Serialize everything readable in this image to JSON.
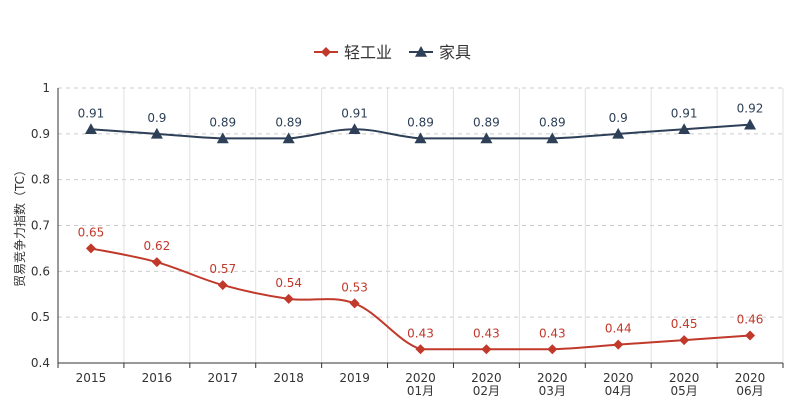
{
  "chart_data": {
    "type": "line",
    "title": "",
    "xlabel": "",
    "ylabel": "贸易竞争力指数（TC）",
    "ylim": [
      0.4,
      1
    ],
    "yticks": [
      "0.4",
      "0.5",
      "0.6",
      "0.7",
      "0.8",
      "0.9",
      "1"
    ],
    "categories": [
      [
        "2015"
      ],
      [
        "2016"
      ],
      [
        "2017"
      ],
      [
        "2018"
      ],
      [
        "2019"
      ],
      [
        "2020",
        "01月"
      ],
      [
        "2020",
        "02月"
      ],
      [
        "2020",
        "03月"
      ],
      [
        "2020",
        "04月"
      ],
      [
        "2020",
        "05月"
      ],
      [
        "2020",
        "06月"
      ]
    ],
    "grid": true,
    "legend_position": "top-center",
    "series": [
      {
        "name": "轻工业",
        "color": "#c0392b",
        "marker": "diamond",
        "values": [
          0.65,
          0.62,
          0.57,
          0.54,
          0.53,
          0.43,
          0.43,
          0.43,
          0.44,
          0.45,
          0.46
        ],
        "labels": [
          "0.65",
          "0.62",
          "0.57",
          "0.54",
          "0.53",
          "0.43",
          "0.43",
          "0.43",
          "0.44",
          "0.45",
          "0.46"
        ]
      },
      {
        "name": "家具",
        "color": "#2e4057",
        "marker": "triangle",
        "values": [
          0.91,
          0.9,
          0.89,
          0.89,
          0.91,
          0.89,
          0.89,
          0.89,
          0.9,
          0.91,
          0.92
        ],
        "labels": [
          "0.91",
          "0.9",
          "0.89",
          "0.89",
          "0.91",
          "0.89",
          "0.89",
          "0.89",
          "0.9",
          "0.91",
          "0.92"
        ]
      }
    ]
  }
}
